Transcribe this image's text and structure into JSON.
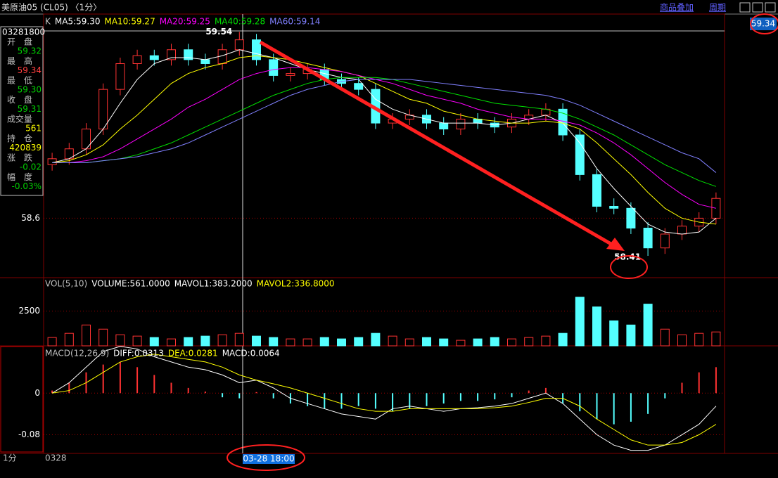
{
  "header": {
    "title": "美原油05 (CL05) 〈1分〉",
    "links": [
      "商品叠加",
      "周期"
    ]
  },
  "price_box": "59.34",
  "info_panel": {
    "time": "03281800",
    "fields": [
      {
        "label": "开　盘",
        "value": "59.32"
      },
      {
        "label": "最　高",
        "value": "59.34"
      },
      {
        "label": "最　低",
        "value": "59.30"
      },
      {
        "label": "收　盘",
        "value": "59.31"
      },
      {
        "label": "成交量",
        "value": "561"
      },
      {
        "label": "持　仓",
        "value": "420839"
      },
      {
        "label": "涨　跌",
        "value": "-0.02"
      },
      {
        "label": "幅　度",
        "value": "-0.03%"
      }
    ]
  },
  "time_axis": {
    "period": "1分",
    "start": "0328",
    "cursor": "03-28 18:00"
  },
  "chart_data": [
    {
      "type": "candlestick",
      "legend": [
        "K"
      ],
      "open": [
        58.87,
        58.9,
        58.95,
        59.05,
        59.25,
        59.38,
        59.42,
        59.4,
        59.45,
        59.4,
        59.38,
        59.45,
        59.5,
        59.4,
        59.32,
        59.33,
        59.35,
        59.3,
        59.28,
        59.25,
        59.08,
        59.1,
        59.12,
        59.08,
        59.05,
        59.1,
        59.08,
        59.06,
        59.1,
        59.12,
        59.15,
        59.02,
        58.82,
        58.66,
        58.65,
        58.55,
        58.45,
        58.52,
        58.56,
        58.6
      ],
      "high": [
        58.93,
        58.98,
        59.08,
        59.28,
        59.41,
        59.45,
        59.45,
        59.48,
        59.48,
        59.43,
        59.48,
        59.54,
        59.53,
        59.43,
        59.36,
        59.38,
        59.38,
        59.33,
        59.31,
        59.28,
        59.13,
        59.15,
        59.15,
        59.11,
        59.13,
        59.13,
        59.11,
        59.13,
        59.15,
        59.18,
        59.18,
        59.05,
        58.85,
        58.7,
        58.68,
        58.58,
        58.55,
        58.59,
        58.63,
        58.73
      ],
      "low": [
        58.84,
        58.87,
        58.92,
        59.02,
        59.22,
        59.35,
        59.37,
        59.37,
        59.37,
        59.35,
        59.35,
        59.42,
        59.37,
        59.29,
        59.29,
        59.3,
        59.27,
        59.25,
        59.22,
        59.05,
        59.05,
        59.07,
        59.05,
        59.02,
        59.02,
        59.05,
        59.03,
        59.03,
        59.07,
        59.09,
        58.99,
        58.79,
        58.63,
        58.62,
        58.52,
        58.41,
        58.42,
        58.49,
        58.53,
        58.57
      ],
      "close": [
        58.9,
        58.95,
        59.05,
        59.25,
        59.38,
        59.42,
        59.4,
        59.45,
        59.4,
        59.38,
        59.45,
        59.5,
        59.4,
        59.32,
        59.33,
        59.35,
        59.3,
        59.28,
        59.25,
        59.08,
        59.1,
        59.12,
        59.08,
        59.05,
        59.1,
        59.08,
        59.06,
        59.1,
        59.12,
        59.15,
        59.02,
        58.82,
        58.66,
        58.65,
        58.55,
        58.45,
        58.52,
        58.56,
        58.6,
        58.7
      ],
      "annotations": [
        {
          "text": 59.54,
          "index": 11,
          "at": "high"
        },
        {
          "text": 58.41,
          "index": 35,
          "at": "low"
        }
      ],
      "series": [
        {
          "name": "MA5:59.30",
          "color": "#ffffff",
          "values": [
            58.88,
            58.9,
            58.95,
            59.05,
            59.18,
            59.3,
            59.38,
            59.41,
            59.41,
            59.4,
            59.42,
            59.45,
            59.43,
            59.41,
            59.38,
            59.35,
            59.33,
            59.31,
            59.3,
            59.2,
            59.15,
            59.12,
            59.1,
            59.08,
            59.08,
            59.08,
            59.07,
            59.08,
            59.1,
            59.12,
            59.08,
            58.98,
            58.85,
            58.75,
            58.66,
            58.57,
            58.53,
            58.52,
            58.53,
            58.6
          ]
        },
        {
          "name": "MA10:59.27",
          "color": "#ffff00",
          "values": [
            58.88,
            58.89,
            58.92,
            58.97,
            59.05,
            59.12,
            59.2,
            59.28,
            59.33,
            59.36,
            59.38,
            59.41,
            59.42,
            59.41,
            59.4,
            59.38,
            59.36,
            59.34,
            59.32,
            59.28,
            59.24,
            59.2,
            59.18,
            59.14,
            59.12,
            59.1,
            59.09,
            59.08,
            59.08,
            59.09,
            59.08,
            59.05,
            58.98,
            58.9,
            58.82,
            58.73,
            58.65,
            58.6,
            58.58,
            58.57
          ]
        },
        {
          "name": "MA20:59.25",
          "color": "#ff00ff",
          "values": [
            58.88,
            58.88,
            58.89,
            58.91,
            58.95,
            59.0,
            59.05,
            59.1,
            59.16,
            59.2,
            59.25,
            59.3,
            59.33,
            59.35,
            59.36,
            59.36,
            59.35,
            59.34,
            59.32,
            59.3,
            59.28,
            59.25,
            59.22,
            59.2,
            59.18,
            59.15,
            59.13,
            59.11,
            59.1,
            59.1,
            59.09,
            59.07,
            59.03,
            58.98,
            58.92,
            58.85,
            58.78,
            58.72,
            58.67,
            58.65
          ]
        },
        {
          "name": "MA40:59.28",
          "color": "#00e000",
          "values": [
            58.88,
            58.88,
            58.88,
            58.89,
            58.9,
            58.92,
            58.95,
            58.98,
            59.02,
            59.06,
            59.1,
            59.14,
            59.18,
            59.22,
            59.25,
            59.28,
            59.3,
            59.31,
            59.31,
            59.31,
            59.3,
            59.28,
            59.26,
            59.24,
            59.22,
            59.2,
            59.18,
            59.17,
            59.16,
            59.15,
            59.13,
            59.1,
            59.06,
            59.02,
            58.97,
            58.92,
            58.87,
            58.83,
            58.79,
            58.76
          ]
        },
        {
          "name": "MA60:59.14",
          "color": "#8080ff",
          "values": [
            58.88,
            58.88,
            58.88,
            58.89,
            58.9,
            58.91,
            58.93,
            58.95,
            58.98,
            59.02,
            59.06,
            59.1,
            59.14,
            59.18,
            59.22,
            59.25,
            59.27,
            59.29,
            59.3,
            59.3,
            59.3,
            59.3,
            59.29,
            59.28,
            59.27,
            59.26,
            59.25,
            59.24,
            59.23,
            59.22,
            59.2,
            59.17,
            59.13,
            59.09,
            59.05,
            59.01,
            58.97,
            58.93,
            58.9,
            58.83
          ]
        }
      ],
      "ylim": [
        58.3,
        59.63
      ],
      "yticks": [
        58.6
      ],
      "grid": true
    },
    {
      "type": "volume",
      "legend": [
        "VOL(5,10)",
        "VOLUME:561.0000",
        "MAVOL1:383.2000",
        "MAVOL2:336.8000"
      ],
      "legend_colors": [
        "#c0c0c0",
        "#ffffff",
        "#ffffff",
        "#ffff00"
      ],
      "values": [
        600,
        900,
        1500,
        1200,
        800,
        700,
        600,
        500,
        600,
        700,
        800,
        900,
        700,
        600,
        500,
        500,
        600,
        500,
        600,
        900,
        700,
        500,
        600,
        500,
        400,
        500,
        600,
        500,
        600,
        700,
        900,
        3500,
        2800,
        1800,
        1500,
        3000,
        1200,
        800,
        900,
        1000
      ],
      "ylim": [
        0,
        4900
      ],
      "yticks": [
        2500
      ],
      "grid": true
    },
    {
      "type": "macd",
      "legend": [
        "MACD(12,26,9)",
        "MACD:0.0064"
      ],
      "values": [
        0.005,
        0.02,
        0.04,
        0.055,
        0.06,
        0.05,
        0.035,
        0.02,
        0.01,
        0.003,
        -0.008,
        -0.01,
        0.002,
        -0.01,
        -0.02,
        -0.025,
        -0.03,
        -0.03,
        -0.025,
        -0.03,
        -0.035,
        -0.03,
        -0.025,
        -0.02,
        -0.015,
        -0.015,
        -0.012,
        -0.008,
        0.005,
        0.01,
        -0.02,
        -0.035,
        -0.05,
        -0.06,
        -0.055,
        -0.04,
        -0.01,
        0.02,
        0.04,
        0.05
      ],
      "series": [
        {
          "name": "DIFF:0.0313",
          "color": "#ffffff",
          "values": [
            0,
            0.02,
            0.05,
            0.08,
            0.09,
            0.085,
            0.07,
            0.06,
            0.05,
            0.045,
            0.035,
            0.02,
            0.025,
            0.01,
            -0.01,
            -0.02,
            -0.03,
            -0.04,
            -0.045,
            -0.05,
            -0.03,
            -0.025,
            -0.03,
            -0.035,
            -0.03,
            -0.028,
            -0.025,
            -0.02,
            -0.01,
            0,
            -0.02,
            -0.05,
            -0.08,
            -0.1,
            -0.11,
            -0.11,
            -0.1,
            -0.08,
            -0.06,
            -0.025
          ]
        },
        {
          "name": "DEA:0.0281",
          "color": "#ffff00",
          "values": [
            0,
            0.005,
            0.02,
            0.04,
            0.06,
            0.07,
            0.075,
            0.07,
            0.065,
            0.06,
            0.05,
            0.035,
            0.025,
            0.018,
            0.01,
            0,
            -0.01,
            -0.02,
            -0.03,
            -0.035,
            -0.035,
            -0.03,
            -0.03,
            -0.03,
            -0.03,
            -0.03,
            -0.028,
            -0.025,
            -0.018,
            -0.01,
            -0.01,
            -0.025,
            -0.05,
            -0.07,
            -0.09,
            -0.1,
            -0.1,
            -0.095,
            -0.08,
            -0.06
          ]
        }
      ],
      "ylim": [
        -0.116,
        0.091
      ],
      "yticks": [
        0,
        -0.08
      ],
      "grid": true
    }
  ]
}
